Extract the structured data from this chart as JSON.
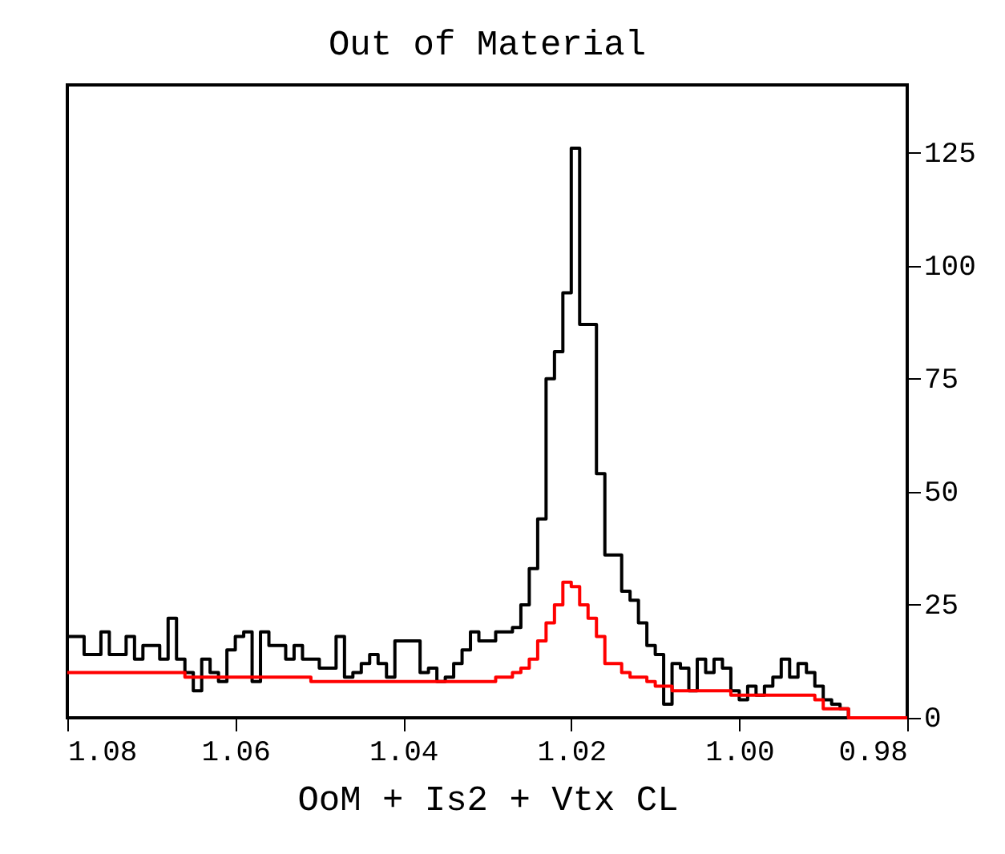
{
  "chart_data": {
    "type": "histogram",
    "title": "Out of Material",
    "xlabel": "OoM + Is2 + Vtx CL",
    "bins": [
      0.98,
      0.981,
      0.982,
      0.983,
      0.984,
      0.985,
      0.986,
      0.987,
      0.988,
      0.989,
      0.99,
      0.991,
      0.992,
      0.993,
      0.994,
      0.995,
      0.996,
      0.997,
      0.998,
      0.999,
      1.0,
      1.001,
      1.002,
      1.003,
      1.004,
      1.005,
      1.006,
      1.007,
      1.008,
      1.009,
      1.01,
      1.011,
      1.012,
      1.013,
      1.014,
      1.015,
      1.016,
      1.017,
      1.018,
      1.019,
      1.02,
      1.021,
      1.022,
      1.023,
      1.024,
      1.025,
      1.026,
      1.027,
      1.028,
      1.029,
      1.03,
      1.031,
      1.032,
      1.033,
      1.034,
      1.035,
      1.036,
      1.037,
      1.038,
      1.039,
      1.04,
      1.041,
      1.042,
      1.043,
      1.044,
      1.045,
      1.046,
      1.047,
      1.048,
      1.049,
      1.05,
      1.051,
      1.052,
      1.053,
      1.054,
      1.055,
      1.056,
      1.057,
      1.058,
      1.059,
      1.06,
      1.061,
      1.062,
      1.063,
      1.064,
      1.065,
      1.066,
      1.067,
      1.068,
      1.069,
      1.07,
      1.071,
      1.072,
      1.073,
      1.074,
      1.075,
      1.076,
      1.077,
      1.078,
      1.079,
      1.08
    ],
    "series": [
      {
        "color": "#000000",
        "values": [
          0,
          0,
          0,
          0,
          0,
          0,
          0,
          2,
          3,
          4,
          7,
          10,
          12,
          9,
          13,
          9,
          7,
          5,
          7,
          4,
          6,
          11,
          13,
          10,
          13,
          6,
          11,
          12,
          3,
          14,
          16,
          21,
          26,
          28,
          36,
          36,
          54,
          87,
          87,
          126,
          94,
          81,
          75,
          44,
          33,
          25,
          20,
          19,
          19,
          17,
          17,
          19,
          15,
          12,
          9,
          8,
          11,
          10,
          17,
          17,
          17,
          9,
          12,
          14,
          12,
          10,
          9,
          18,
          11,
          11,
          13,
          13,
          16,
          13,
          16,
          16,
          19,
          8,
          19,
          18,
          15,
          8,
          10,
          13,
          6,
          10,
          13,
          22,
          13,
          16,
          16,
          13,
          18,
          14,
          14,
          19,
          14,
          14,
          18,
          18
        ]
      },
      {
        "color": "#ff0000",
        "values": [
          0,
          0,
          0,
          0,
          0,
          0,
          0,
          2,
          2,
          2,
          4,
          5,
          5,
          5,
          5,
          5,
          5,
          5,
          5,
          5,
          5,
          6,
          6,
          6,
          6,
          6,
          6,
          6,
          7,
          7,
          8,
          9,
          9,
          10,
          12,
          12,
          18,
          22,
          25,
          29,
          30,
          25,
          21,
          17,
          13,
          11,
          10,
          9,
          9,
          8,
          8,
          8,
          8,
          8,
          8,
          8,
          8,
          8,
          8,
          8,
          8,
          8,
          8,
          8,
          8,
          8,
          8,
          8,
          8,
          8,
          8,
          9,
          9,
          9,
          9,
          9,
          9,
          9,
          9,
          9,
          9,
          9,
          9,
          9,
          9,
          9,
          10,
          10,
          10,
          10,
          10,
          10,
          10,
          10,
          10,
          10,
          10,
          10,
          10,
          10
        ]
      }
    ],
    "xlim": [
      1.08,
      0.98
    ],
    "xticks": [
      {
        "value": 0.98,
        "label": "0.98"
      },
      {
        "value": 1.0,
        "label": "1.00"
      },
      {
        "value": 1.02,
        "label": "1.02"
      },
      {
        "value": 1.04,
        "label": "1.04"
      },
      {
        "value": 1.06,
        "label": "1.06"
      },
      {
        "value": 1.08,
        "label": "1.08"
      }
    ],
    "ylim": [
      0,
      140
    ],
    "yticks": [
      0,
      25,
      50,
      75,
      100,
      125
    ],
    "grid": false,
    "legend": false
  }
}
